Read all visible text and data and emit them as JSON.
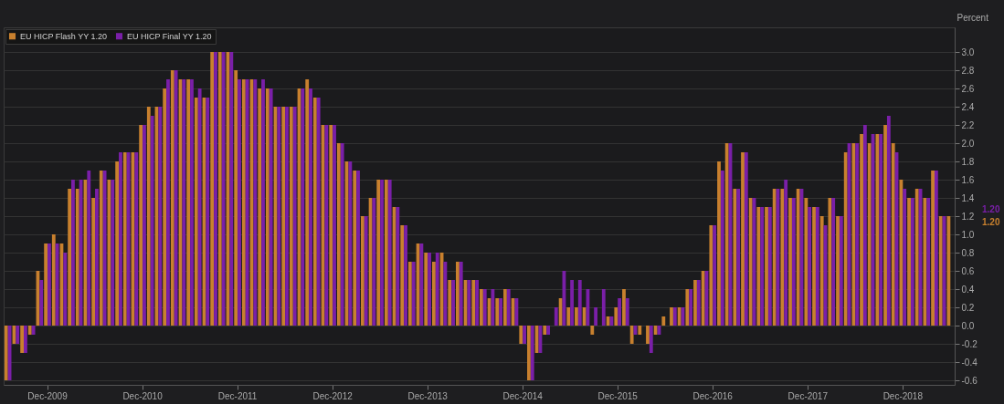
{
  "chart_data": {
    "type": "bar",
    "ylabel": "Percent",
    "categories": [
      null,
      null,
      null,
      null,
      null,
      "Dec-2009",
      null,
      null,
      null,
      null,
      null,
      null,
      null,
      null,
      null,
      null,
      null,
      "Dec-2010",
      null,
      null,
      null,
      null,
      null,
      null,
      null,
      null,
      null,
      null,
      null,
      "Dec-2011",
      null,
      null,
      null,
      null,
      null,
      null,
      null,
      null,
      null,
      null,
      null,
      "Dec-2012",
      null,
      null,
      null,
      null,
      null,
      null,
      null,
      null,
      null,
      null,
      null,
      "Dec-2013",
      null,
      null,
      null,
      null,
      null,
      null,
      null,
      null,
      null,
      null,
      null,
      "Dec-2014",
      null,
      null,
      null,
      null,
      null,
      null,
      null,
      null,
      null,
      null,
      null,
      "Dec-2015",
      null,
      null,
      null,
      null,
      null,
      null,
      null,
      null,
      null,
      null,
      null,
      "Dec-2016",
      null,
      null,
      null,
      null,
      null,
      null,
      null,
      null,
      null,
      null,
      null,
      "Dec-2017",
      null,
      null,
      null,
      null,
      null,
      null,
      null,
      null,
      null,
      null,
      null,
      "Dec-2018",
      null,
      null,
      null,
      null,
      null,
      null
    ],
    "series": [
      {
        "name": "EU HICP Flash YY 1.20",
        "color": "#c8802e",
        "values": [
          -0.6,
          -0.2,
          -0.3,
          -0.1,
          0.6,
          0.9,
          1.0,
          0.9,
          1.5,
          1.5,
          1.6,
          1.4,
          1.7,
          1.6,
          1.8,
          1.9,
          1.9,
          2.2,
          2.4,
          2.4,
          2.6,
          2.8,
          2.7,
          2.7,
          2.5,
          2.5,
          3.0,
          3.0,
          3.0,
          2.8,
          2.7,
          2.7,
          2.6,
          2.6,
          2.4,
          2.4,
          2.4,
          2.6,
          2.7,
          2.5,
          2.2,
          2.2,
          2.0,
          1.8,
          1.7,
          1.2,
          1.4,
          1.6,
          1.6,
          1.3,
          1.1,
          0.7,
          0.9,
          0.8,
          0.7,
          0.8,
          0.5,
          0.7,
          0.5,
          0.5,
          0.4,
          0.3,
          0.3,
          0.4,
          0.3,
          -0.2,
          -0.6,
          -0.3,
          -0.1,
          0.0,
          0.3,
          0.2,
          0.2,
          0.2,
          -0.1,
          0.0,
          0.1,
          0.2,
          0.4,
          -0.2,
          -0.1,
          -0.2,
          -0.1,
          0.1,
          0.2,
          0.2,
          0.4,
          0.5,
          0.6,
          1.1,
          1.8,
          2.0,
          1.5,
          1.9,
          1.4,
          1.3,
          1.3,
          1.5,
          1.5,
          1.4,
          1.5,
          1.4,
          1.3,
          1.2,
          1.4,
          1.2,
          1.9,
          2.0,
          2.1,
          2.0,
          2.1,
          2.2,
          2.0,
          1.6,
          1.4,
          1.5,
          1.4,
          1.7,
          1.2,
          1.2
        ]
      },
      {
        "name": "EU HICP Final YY 1.20",
        "color": "#7a1fa8",
        "values": [
          -0.6,
          -0.2,
          -0.3,
          -0.1,
          0.5,
          0.9,
          0.9,
          0.8,
          1.6,
          1.6,
          1.7,
          1.5,
          1.7,
          1.6,
          1.9,
          1.9,
          1.9,
          2.2,
          2.3,
          2.4,
          2.7,
          2.8,
          2.7,
          2.7,
          2.6,
          2.5,
          3.0,
          3.0,
          3.0,
          2.7,
          2.7,
          2.7,
          2.7,
          2.6,
          2.4,
          2.4,
          2.4,
          2.6,
          2.6,
          2.5,
          2.2,
          2.2,
          2.0,
          1.8,
          1.7,
          1.2,
          1.4,
          1.6,
          1.6,
          1.3,
          1.1,
          0.7,
          0.9,
          0.8,
          0.8,
          0.7,
          0.5,
          0.7,
          0.5,
          0.5,
          0.4,
          0.4,
          0.3,
          0.4,
          0.3,
          -0.2,
          -0.6,
          -0.3,
          -0.1,
          0.2,
          0.6,
          0.5,
          0.5,
          0.4,
          0.2,
          0.4,
          0.1,
          0.3,
          0.3,
          -0.1,
          0.0,
          -0.3,
          -0.1,
          0.0,
          0.2,
          0.2,
          0.4,
          0.5,
          0.6,
          1.1,
          1.7,
          2.0,
          1.5,
          1.9,
          1.4,
          1.3,
          1.3,
          1.5,
          1.6,
          1.4,
          1.5,
          1.3,
          1.3,
          1.1,
          1.4,
          1.2,
          2.0,
          2.0,
          2.2,
          2.1,
          2.1,
          2.3,
          1.9,
          1.5,
          1.4,
          1.5,
          1.4,
          1.7,
          1.2,
          null
        ]
      }
    ],
    "ylim": [
      -0.65,
      3.27
    ],
    "yticks": [
      -0.6,
      -0.4,
      -0.2,
      {
        "value": 0,
        "label": "0.0"
      },
      0.2,
      0.4,
      0.6,
      0.8,
      {
        "value": 1,
        "label": "1.0"
      },
      1.2,
      1.4,
      1.6,
      1.8,
      {
        "value": 2,
        "label": "2.0"
      },
      2.2,
      2.4,
      2.6,
      2.8,
      {
        "value": 3,
        "label": "3.0"
      }
    ],
    "grid": "y",
    "legend": "top left",
    "annotations": [
      "1.20",
      "1.20"
    ]
  }
}
